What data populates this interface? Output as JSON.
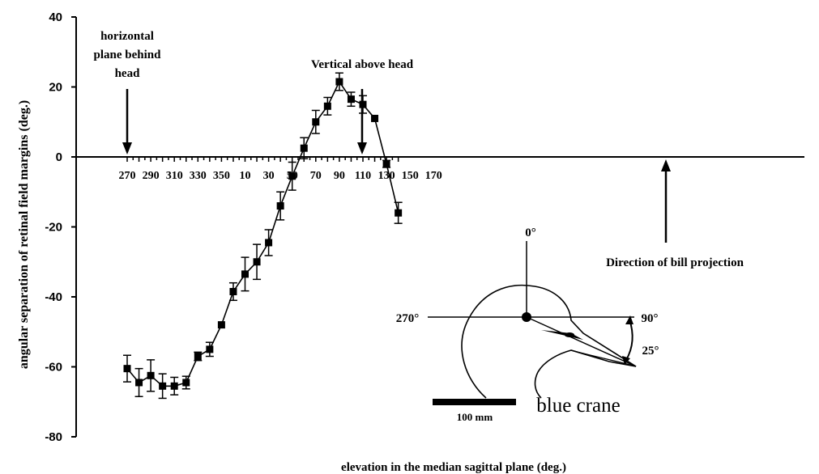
{
  "chart_data": {
    "type": "line",
    "ylabel": "angular separation of retinal field margins (deg.)",
    "xlabel": "elevation in the median sagittal plane (deg.)",
    "ylim": [
      -80,
      40
    ],
    "yticks": [
      "40",
      "20",
      "0",
      "-20",
      "-40",
      "-60",
      "-80"
    ],
    "xticks": [
      "270",
      "290",
      "310",
      "330",
      "350",
      "10",
      "30",
      "50",
      "70",
      "90",
      "110",
      "130",
      "150",
      "170"
    ],
    "x_note": "elevation wraps at 360 (…350, 0, 10…); values 270–350 then 0–140",
    "grid": false,
    "series": [
      {
        "x": [
          270,
          280,
          290,
          300,
          310,
          320,
          330,
          340,
          350,
          360,
          370,
          380,
          390,
          400,
          410,
          420,
          430,
          440,
          450,
          460,
          470,
          480,
          490,
          500
        ],
        "y": [
          -60.5,
          -64.5,
          -62.5,
          -65.5,
          -65.5,
          -64.5,
          -57,
          -55,
          -48,
          -38.5,
          -33.5,
          -30,
          -24.5,
          -14,
          -5.5,
          2.5,
          10,
          14.5,
          21.5,
          16.5,
          15,
          11,
          -2,
          -16
        ],
        "err": [
          3.8,
          4.0,
          4.5,
          3.5,
          2.5,
          1.8,
          1.2,
          2.0,
          0,
          2.5,
          4.8,
          5.0,
          3.7,
          4.0,
          4.0,
          3.0,
          3.3,
          2.5,
          2.5,
          2.0,
          2.5,
          0,
          1.0,
          3.0
        ]
      }
    ],
    "annotations": {
      "horizontal_behind": [
        "horizontal",
        "plane behind",
        "head"
      ],
      "vertical_above": "Vertical above head",
      "bill_projection": "Direction of bill projection",
      "inset_top": "0°",
      "inset_left": "270°",
      "inset_right": "90°",
      "inset_angle": "25°",
      "scale_bar": "100 mm",
      "species": "blue crane"
    }
  }
}
